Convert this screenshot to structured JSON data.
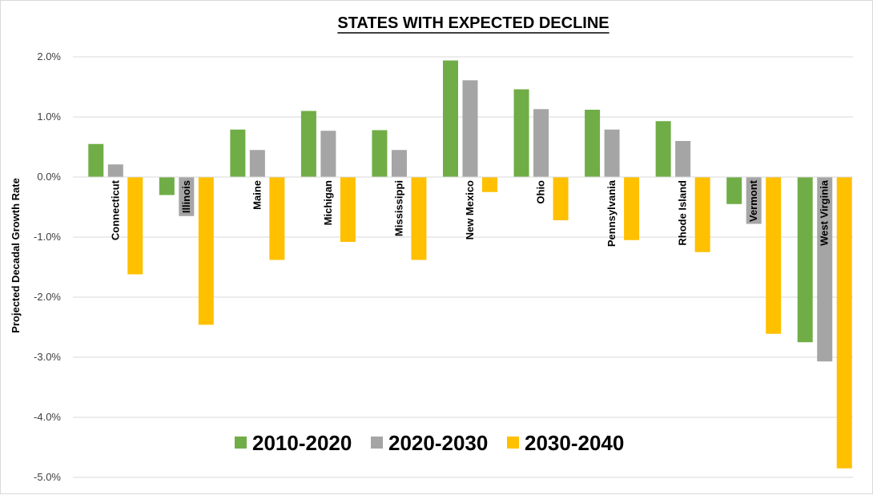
{
  "chart_data": {
    "type": "bar",
    "title": "STATES WITH EXPECTED DECLINE",
    "ylabel": "Projected Decadal Growth Rate",
    "xlabel": "",
    "ylim": [
      -5.0,
      2.0
    ],
    "yticks": [
      2.0,
      1.0,
      0.0,
      -1.0,
      -2.0,
      -3.0,
      -4.0,
      -5.0
    ],
    "ytick_labels": [
      "2.0%",
      "1.0%",
      "0.0%",
      "-1.0%",
      "-2.0%",
      "-3.0%",
      "-4.0%",
      "-5.0%"
    ],
    "grid": true,
    "legend_position": "bottom-center",
    "categories": [
      "Connecticut",
      "Illinois",
      "Maine",
      "Michigan",
      "Mississippi",
      "New Mexico",
      "Ohio",
      "Pennsylvania",
      "Rhode Island",
      "Vermont",
      "West Virginia"
    ],
    "series": [
      {
        "name": "2010-2020",
        "color": "#70ad47",
        "values": [
          0.55,
          -0.3,
          0.79,
          1.1,
          0.78,
          1.94,
          1.46,
          1.12,
          0.93,
          -0.45,
          -2.75
        ]
      },
      {
        "name": "2020-2030",
        "color": "#a5a5a5",
        "values": [
          0.21,
          -0.65,
          0.45,
          0.77,
          0.45,
          1.61,
          1.13,
          0.79,
          0.6,
          -0.78,
          -3.07
        ]
      },
      {
        "name": "2030-2040",
        "color": "#ffc000",
        "values": [
          -1.62,
          -2.46,
          -1.38,
          -1.08,
          -1.38,
          -0.25,
          -0.72,
          -1.05,
          -1.25,
          -2.61,
          -4.85
        ]
      }
    ]
  }
}
